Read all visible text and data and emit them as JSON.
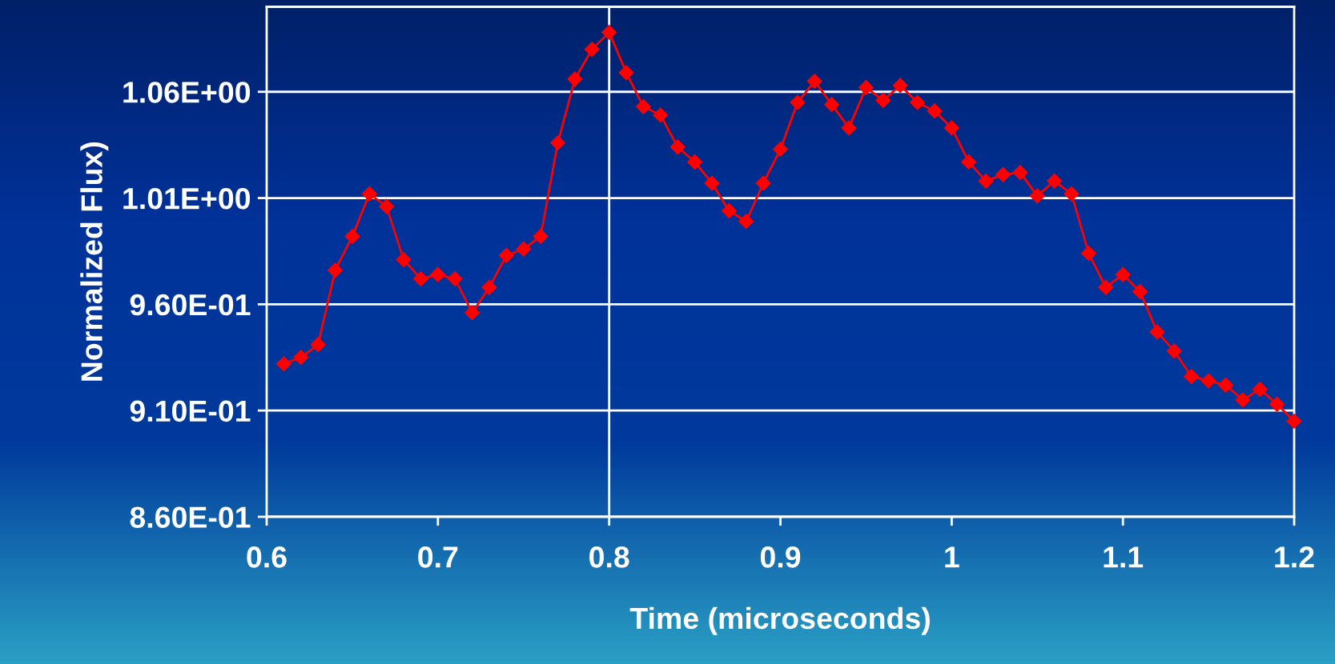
{
  "chart_data": {
    "type": "line",
    "xlabel": "Time (microseconds)",
    "ylabel": "Normalized Flux)",
    "x": [
      0.61,
      0.62,
      0.63,
      0.64,
      0.65,
      0.66,
      0.67,
      0.68,
      0.69,
      0.7,
      0.71,
      0.72,
      0.73,
      0.74,
      0.75,
      0.76,
      0.77,
      0.78,
      0.79,
      0.8,
      0.81,
      0.82,
      0.83,
      0.84,
      0.85,
      0.86,
      0.87,
      0.88,
      0.89,
      0.9,
      0.91,
      0.92,
      0.93,
      0.94,
      0.95,
      0.96,
      0.97,
      0.98,
      0.99,
      1.0,
      1.01,
      1.02,
      1.03,
      1.04,
      1.05,
      1.06,
      1.07,
      1.08,
      1.09,
      1.1,
      1.11,
      1.12,
      1.13,
      1.14,
      1.15,
      1.16,
      1.17,
      1.18,
      1.19,
      1.2
    ],
    "series": [
      {
        "color": "#ff0000",
        "values": [
          0.932,
          0.935,
          0.941,
          0.976,
          0.992,
          1.012,
          1.006,
          0.981,
          0.972,
          0.974,
          0.972,
          0.956,
          0.968,
          0.983,
          0.986,
          0.992,
          1.036,
          1.066,
          1.08,
          1.088,
          1.069,
          1.053,
          1.049,
          1.034,
          1.027,
          1.017,
          1.004,
          0.999,
          1.017,
          1.033,
          1.055,
          1.065,
          1.054,
          1.043,
          1.062,
          1.056,
          1.063,
          1.055,
          1.051,
          1.043,
          1.027,
          1.018,
          1.021,
          1.022,
          1.011,
          1.018,
          1.012,
          0.984,
          0.968,
          0.974,
          0.966,
          0.947,
          0.938,
          0.926,
          0.924,
          0.922,
          0.915,
          0.92,
          0.913,
          0.905
        ]
      }
    ],
    "xlim": [
      0.6,
      1.2
    ],
    "xticks": [
      0.6,
      0.7,
      0.8,
      0.9,
      1,
      1.1,
      1.2
    ],
    "ylim": [
      0.86,
      1.1
    ],
    "yticks": [
      {
        "value": 0.86,
        "label": "8.60E-01"
      },
      {
        "value": 0.91,
        "label": "9.10E-01"
      },
      {
        "value": 0.96,
        "label": "9.60E-01"
      },
      {
        "value": 1.01,
        "label": "1.01E+00"
      },
      {
        "value": 1.06,
        "label": "1.06E+00"
      }
    ],
    "grid": "y",
    "marker": "diamond",
    "line_style": "solid",
    "ref_lines": [
      {
        "axis": "x",
        "value": 0.8,
        "color": "#ffffff"
      }
    ]
  }
}
